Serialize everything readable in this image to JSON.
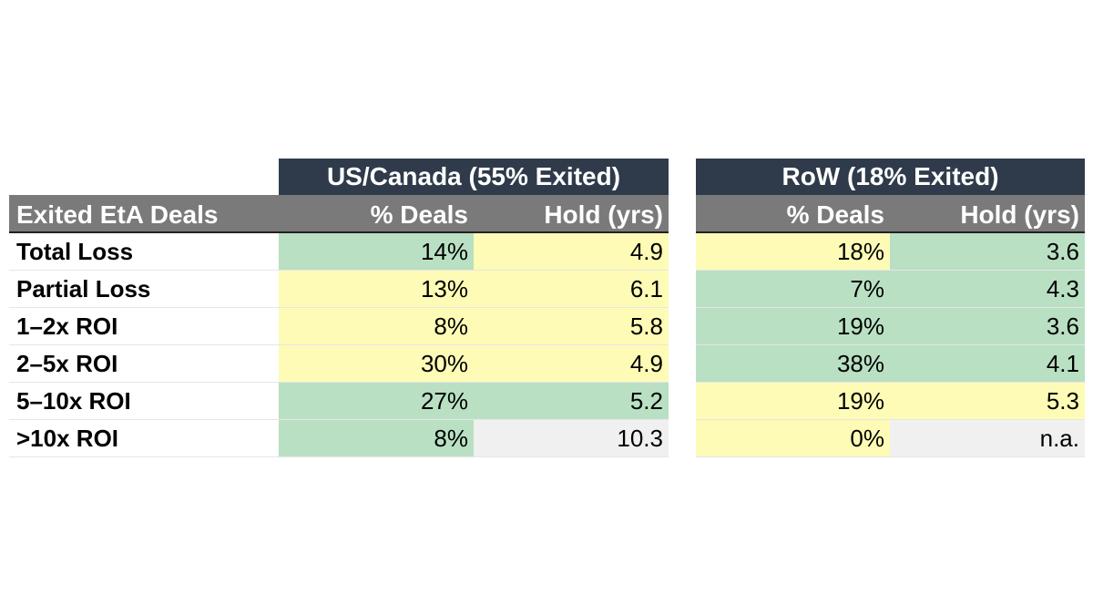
{
  "colors": {
    "group_header_bg": "#2f3b4b",
    "column_header_bg": "#7a7a7a",
    "green": "#b9e0c3",
    "yellow": "#fdfbb6",
    "grey": "#f0f0f0"
  },
  "chart_data": {
    "type": "table",
    "row_header_label": "Exited EtA Deals",
    "groups": [
      {
        "title": "US/Canada (55% Exited)",
        "columns": [
          "% Deals",
          "Hold (yrs)"
        ],
        "rows": [
          {
            "deals": "14%",
            "deals_color": "green",
            "hold": "4.9",
            "hold_color": "yellow"
          },
          {
            "deals": "13%",
            "deals_color": "yellow",
            "hold": "6.1",
            "hold_color": "yellow"
          },
          {
            "deals": "8%",
            "deals_color": "yellow",
            "hold": "5.8",
            "hold_color": "yellow"
          },
          {
            "deals": "30%",
            "deals_color": "yellow",
            "hold": "4.9",
            "hold_color": "yellow"
          },
          {
            "deals": "27%",
            "deals_color": "green",
            "hold": "5.2",
            "hold_color": "green"
          },
          {
            "deals": "8%",
            "deals_color": "green",
            "hold": "10.3",
            "hold_color": "grey"
          }
        ]
      },
      {
        "title": "RoW (18% Exited)",
        "columns": [
          "% Deals",
          "Hold (yrs)"
        ],
        "rows": [
          {
            "deals": "18%",
            "deals_color": "yellow",
            "hold": "3.6",
            "hold_color": "green"
          },
          {
            "deals": "7%",
            "deals_color": "green",
            "hold": "4.3",
            "hold_color": "green"
          },
          {
            "deals": "19%",
            "deals_color": "green",
            "hold": "3.6",
            "hold_color": "green"
          },
          {
            "deals": "38%",
            "deals_color": "green",
            "hold": "4.1",
            "hold_color": "green"
          },
          {
            "deals": "19%",
            "deals_color": "yellow",
            "hold": "5.3",
            "hold_color": "yellow"
          },
          {
            "deals": "0%",
            "deals_color": "yellow",
            "hold": "n.a.",
            "hold_color": "grey"
          }
        ]
      }
    ],
    "row_labels": [
      "Total Loss",
      "Partial Loss",
      "1–2x ROI",
      "2–5x ROI",
      "5–10x ROI",
      ">10x ROI"
    ]
  }
}
